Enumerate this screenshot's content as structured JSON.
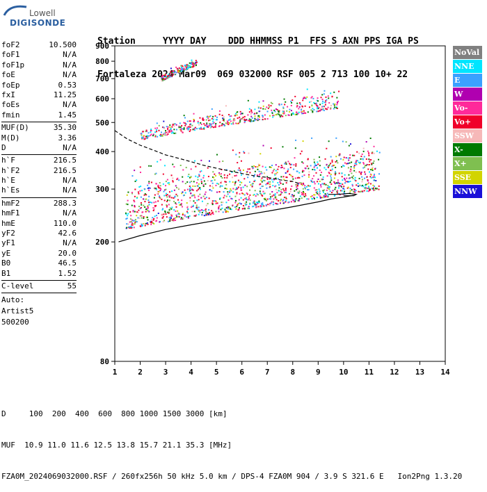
{
  "logo": {
    "top": "Lowell",
    "bottom": "DIGISONDE"
  },
  "header": {
    "line1": "Station     YYYY DAY    DDD HHMMSS P1  FFS S AXN PPS IGA PS",
    "line2": "Fortaleza 2024 Mar09  069 032000 RSF 005 2 713 100 10+ 22"
  },
  "params": [
    {
      "label": "foF2",
      "value": "10.500"
    },
    {
      "label": "foF1",
      "value": "N/A"
    },
    {
      "label": "foF1p",
      "value": "N/A"
    },
    {
      "label": "foE",
      "value": "N/A"
    },
    {
      "label": "foEp",
      "value": "0.53"
    },
    {
      "label": "fxI",
      "value": "11.25"
    },
    {
      "label": "foEs",
      "value": "N/A"
    },
    {
      "label": "fmin",
      "value": "1.45"
    },
    {
      "sep": true
    },
    {
      "label": "MUF(D)",
      "value": "35.30"
    },
    {
      "label": "M(D)",
      "value": "3.36"
    },
    {
      "label": "D",
      "value": "N/A"
    },
    {
      "sep": true
    },
    {
      "label": "h`F",
      "value": "216.5"
    },
    {
      "label": "h`F2",
      "value": "216.5"
    },
    {
      "label": "h`E",
      "value": "N/A"
    },
    {
      "label": "h`Es",
      "value": "N/A"
    },
    {
      "sep": true
    },
    {
      "label": "hmF2",
      "value": "288.3"
    },
    {
      "label": "hmF1",
      "value": "N/A"
    },
    {
      "label": "hmE",
      "value": "110.0"
    },
    {
      "label": "yF2",
      "value": "42.6"
    },
    {
      "label": "yF1",
      "value": "N/A"
    },
    {
      "label": "yE",
      "value": "20.0"
    },
    {
      "label": "B0",
      "value": "46.5"
    },
    {
      "label": "B1",
      "value": "1.52"
    },
    {
      "sep": true
    },
    {
      "label": "C-level",
      "value": "55"
    },
    {
      "sep": true
    }
  ],
  "auto": {
    "line1": "Auto:",
    "line2": "Artist5",
    "line3": "500200"
  },
  "legend": [
    {
      "label": "NoVal",
      "color": "#808080"
    },
    {
      "label": "NNE",
      "color": "#00e5ff"
    },
    {
      "label": "E",
      "color": "#3aa0ff"
    },
    {
      "label": "W",
      "color": "#b000b0"
    },
    {
      "label": "Vo-",
      "color": "#ff2a9a"
    },
    {
      "label": "Vo+",
      "color": "#f0002a"
    },
    {
      "label": "SSW",
      "color": "#f6b8b8"
    },
    {
      "label": "X-",
      "color": "#007a00"
    },
    {
      "label": "X+",
      "color": "#7fbf50"
    },
    {
      "label": "SSE",
      "color": "#d2d400"
    },
    {
      "label": "NNW",
      "color": "#1a10d8"
    }
  ],
  "footer": {
    "line1": "D     100  200  400  600  800 1000 1500 3000 [km]",
    "line2": "MUF  10.9 11.0 11.6 12.5 13.8 15.7 21.1 35.3 [MHz]",
    "line3": "FZA0M_2024069032000.RSF / 260fx256h 50 kHz 5.0 km / DPS-4 FZA0M 904 / 3.9 S 321.6 E   Ion2Png 1.3.20"
  },
  "chart_data": {
    "type": "scatter",
    "xlim": [
      1,
      14
    ],
    "ylim": [
      80,
      900
    ],
    "x_ticks": [
      1,
      2,
      3,
      4,
      5,
      6,
      7,
      8,
      9,
      10,
      11,
      12,
      13,
      14
    ],
    "y_ticks": [
      80,
      200,
      300,
      400,
      500,
      600,
      700,
      800,
      900
    ],
    "y_scale": "log",
    "series": [
      {
        "name": "MUF(D) profile",
        "style": "dashed",
        "x": [
          1.0,
          1.5,
          2.0,
          2.5,
          3.0,
          3.5,
          4.0,
          4.5,
          5.0,
          5.5,
          6.0,
          6.5,
          7.0,
          7.5,
          8.0,
          8.3
        ],
        "y": [
          470,
          440,
          420,
          405,
          390,
          380,
          370,
          360,
          352,
          345,
          338,
          332,
          328,
          322,
          318,
          312
        ]
      },
      {
        "name": "F trace underline",
        "style": "solid",
        "x": [
          1.15,
          2.0,
          3.0,
          4.0,
          5.0,
          6.0,
          7.0,
          8.0,
          9.0,
          9.5,
          10.0,
          10.3,
          10.4
        ],
        "y": [
          200,
          210,
          220,
          228,
          236,
          245,
          253,
          262,
          272,
          278,
          282,
          285,
          286
        ]
      },
      {
        "name": "Echo blob O",
        "style": "solid",
        "x": [
          9.4,
          9.8,
          10.2,
          10.5,
          10.4,
          10.0
        ],
        "y": [
          288,
          288,
          290,
          288,
          285,
          285
        ]
      }
    ],
    "clusters": [
      {
        "name": "F-layer 1st hop",
        "color": "mixed",
        "x0": 1.4,
        "x1": 11.4,
        "y0": 222,
        "y1": 310,
        "y_end0": 300,
        "y_end1": 410
      },
      {
        "name": "F-layer 2nd hop",
        "color": "mixed",
        "x0": 2.0,
        "x1": 9.8,
        "y0": 440,
        "y1": 470,
        "y_end0": 560,
        "y_end1": 640
      },
      {
        "name": "F-layer 3rd hop",
        "color": "mixed",
        "x0": 2.8,
        "x1": 4.2,
        "y0": 690,
        "y1": 720,
        "y_end0": 780,
        "y_end1": 810
      }
    ]
  }
}
